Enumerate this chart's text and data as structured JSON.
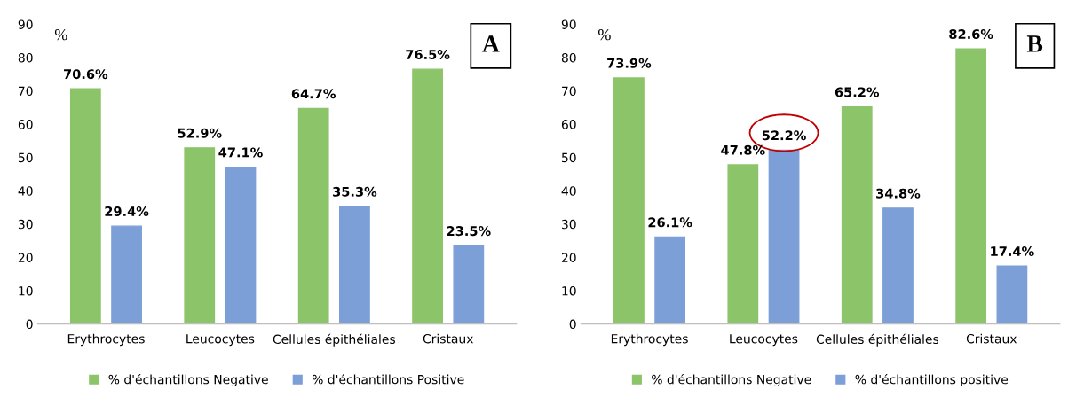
{
  "chart_data": [
    {
      "type": "bar",
      "ylabel": "%",
      "categories": [
        "Erythrocytes",
        "Leucocytes",
        "Cellules épithéliales",
        "Cristaux"
      ],
      "series": [
        {
          "name": "% d'échantillons Negative",
          "color": "#8cc46a",
          "values": [
            70.6,
            52.9,
            64.7,
            76.5
          ],
          "value_labels": [
            "70.6%",
            "52.9%",
            "64.7%",
            "76.5%"
          ]
        },
        {
          "name": "% d'échantillons Positive",
          "color": "#7d9fd8",
          "values": [
            29.4,
            47.1,
            35.3,
            23.5
          ],
          "value_labels": [
            "29.4%",
            "47.1%",
            "35.3%",
            "23.5%"
          ]
        }
      ],
      "ylim": [
        0,
        90
      ],
      "yticks": [
        0,
        10,
        20,
        30,
        40,
        50,
        60,
        70,
        80,
        90
      ],
      "grid": false,
      "legend": "bottom",
      "annotations": [
        "A"
      ]
    },
    {
      "type": "bar",
      "ylabel": "%",
      "categories": [
        "Erythrocytes",
        "Leucocytes",
        "Cellules épithéliales",
        "Cristaux"
      ],
      "series": [
        {
          "name": "% d'échantillons Negative",
          "color": "#8cc46a",
          "values": [
            73.9,
            47.8,
            65.2,
            82.6
          ],
          "value_labels": [
            "73.9%",
            "47.8%",
            "65.2%",
            "82.6%"
          ]
        },
        {
          "name": "% d'échantillons positive",
          "color": "#7d9fd8",
          "values": [
            26.1,
            52.2,
            34.8,
            17.4
          ],
          "value_labels": [
            "26.1%",
            "52.2%",
            "34.8%",
            "17.4%"
          ]
        }
      ],
      "ylim": [
        0,
        90
      ],
      "yticks": [
        0,
        10,
        20,
        30,
        40,
        50,
        60,
        70,
        80,
        90
      ],
      "grid": false,
      "legend": "bottom",
      "annotations": [
        "B"
      ]
    }
  ]
}
